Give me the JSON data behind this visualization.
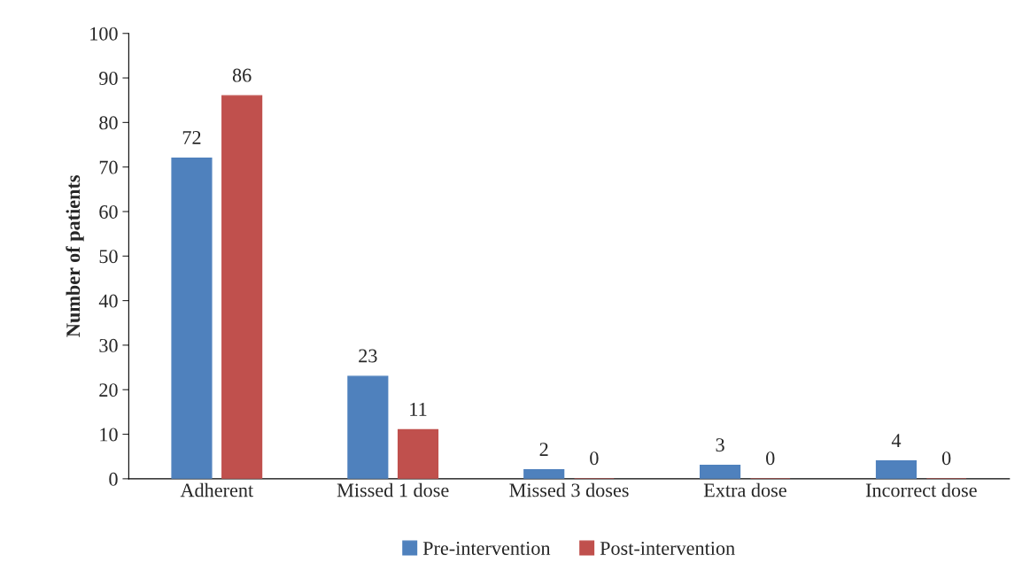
{
  "chart_data": {
    "type": "bar",
    "ylabel": "Number of patients",
    "categories": [
      "Adherent",
      "Missed 1 dose",
      "Missed 3 doses",
      "Extra dose",
      "Incorrect dose"
    ],
    "series": [
      {
        "name": "Pre-intervention",
        "color": "#4f81bd",
        "values": [
          72,
          23,
          2,
          3,
          4
        ]
      },
      {
        "name": "Post-intervention",
        "color": "#c0504d",
        "values": [
          86,
          11,
          0,
          0,
          0
        ]
      }
    ],
    "ylim": [
      0,
      100
    ],
    "yticks": [
      0,
      10,
      20,
      30,
      40,
      50,
      60,
      70,
      80,
      90,
      100
    ],
    "data_labels": true,
    "grid": false,
    "legend": "bottom"
  }
}
